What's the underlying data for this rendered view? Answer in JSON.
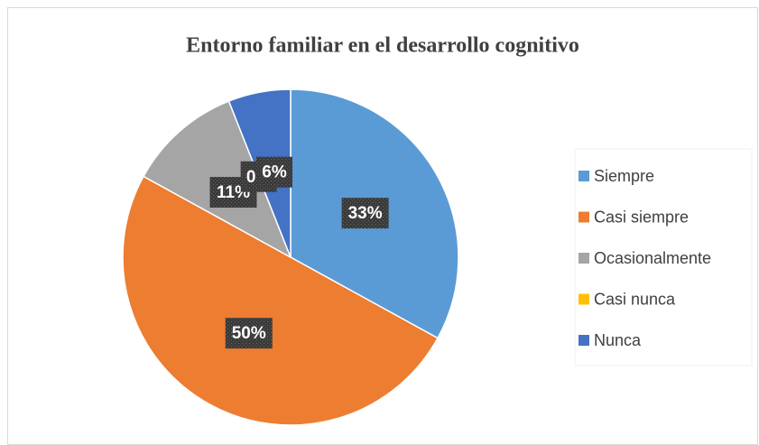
{
  "chart_data": {
    "type": "pie",
    "title": "Entorno familiar en el desarrollo cognitivo",
    "categories": [
      "Siempre",
      "Casi siempre",
      "Ocasionalmente",
      "Casi nunca",
      "Nunca"
    ],
    "values": [
      33,
      50,
      11,
      0,
      6
    ],
    "value_labels": [
      "33%",
      "50%",
      "11%",
      "0%",
      "6%"
    ],
    "colors": [
      "#5b9bd5",
      "#ed7d31",
      "#a5a5a5",
      "#ffc000",
      "#4472c4"
    ],
    "legend": "right"
  }
}
